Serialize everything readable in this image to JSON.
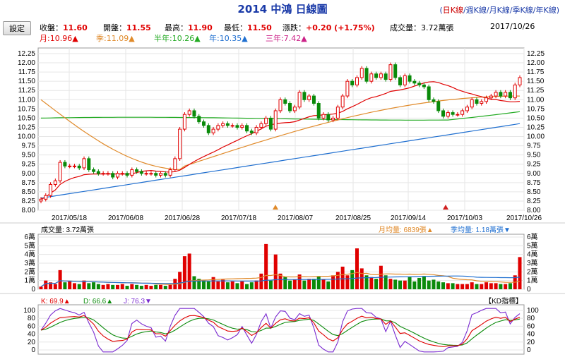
{
  "header": {
    "title": "2014 中鴻 日線圖",
    "periods": [
      {
        "label": "日K線",
        "active": true
      },
      {
        "label": "週K線",
        "active": false
      },
      {
        "label": "月K線",
        "active": false
      },
      {
        "label": "季K線",
        "active": false
      },
      {
        "label": "年K線",
        "active": false
      }
    ],
    "settings_label": "設定"
  },
  "quote": {
    "close_label": "收盤：",
    "close": "11.60",
    "open_label": "開盤：",
    "open": "11.55",
    "high_label": "最高：",
    "high": "11.90",
    "low_label": "最低：",
    "low": "11.50",
    "change_label": "漲跌：",
    "change": "+0.20 (+1.75%)",
    "volume_label": "成交量：",
    "volume": "3.72萬張",
    "date": "2017/10/26"
  },
  "ma_legend": [
    {
      "label": "月:10.96",
      "arrow": "▲",
      "color": "#e00000"
    },
    {
      "label": "季:11.09",
      "arrow": "▲",
      "color": "#e08a2a"
    },
    {
      "label": "半年:10.26",
      "arrow": "▲",
      "color": "#22aa22"
    },
    {
      "label": "年:10.35",
      "arrow": "▲",
      "color": "#1f6fd0"
    },
    {
      "label": "三年:7.42",
      "arrow": "▲",
      "color": "#cc2288"
    }
  ],
  "volume_panel": {
    "label": "成交量: 3.72萬張",
    "month_avg": "月均量: 6839張",
    "month_avg_arrow": "▲",
    "season_avg": "季均量: 1.18萬張",
    "season_avg_arrow": "▼"
  },
  "kd_panel": {
    "k": "K: 69.9",
    "k_arrow": "▲",
    "d": "D: 66.6",
    "d_arrow": "▲",
    "j": "J: 76.3",
    "j_arrow": "▼",
    "badge": "【KD指標】"
  },
  "colors": {
    "up": "#e00000",
    "down": "#0a8a0a",
    "ma_month": "#e00000",
    "ma_season": "#e08a2a",
    "ma_half": "#22aa22",
    "ma_year": "#1f6fd0",
    "k": "#e00000",
    "d": "#0a8a0a",
    "j": "#7a2ad0",
    "title": "#1a3aa8"
  },
  "chart_data": [
    {
      "type": "candlestick",
      "x_ticks": [
        "2017/05/18",
        "2017/06/08",
        "2017/06/28",
        "2017/07/18",
        "2017/08/07",
        "2017/08/25",
        "2017/09/14",
        "2017/10/03",
        "2017/10/26"
      ],
      "y_ticks": [
        "8.00",
        "8.25",
        "8.50",
        "8.75",
        "9.00",
        "9.25",
        "9.50",
        "9.75",
        "10.00",
        "10.25",
        "10.50",
        "10.75",
        "11.00",
        "11.25",
        "11.50",
        "11.75",
        "12.00",
        "12.25"
      ],
      "ylim": [
        8.0,
        12.25
      ],
      "close": [
        8.3,
        8.4,
        8.7,
        8.8,
        9.3,
        9.2,
        9.2,
        9.2,
        9.15,
        9.4,
        9.1,
        9.05,
        9.0,
        9.0,
        9.0,
        8.9,
        9.0,
        9.0,
        8.95,
        9.1,
        9.05,
        9.0,
        9.0,
        9.0,
        8.95,
        9.0,
        8.95,
        9.1,
        9.4,
        10.2,
        10.6,
        10.7,
        10.55,
        10.4,
        10.3,
        10.1,
        10.2,
        10.3,
        10.35,
        10.3,
        10.3,
        10.25,
        10.3,
        10.15,
        10.1,
        10.25,
        10.35,
        10.5,
        10.2,
        10.7,
        11.0,
        10.9,
        10.7,
        10.8,
        11.2,
        11.0,
        11.1,
        10.9,
        10.5,
        10.6,
        10.45,
        10.5,
        10.8,
        11.1,
        11.5,
        11.4,
        11.6,
        11.85,
        11.5,
        11.7,
        11.6,
        11.7,
        11.55,
        11.95,
        11.6,
        11.4,
        11.65,
        11.5,
        11.45,
        11.4,
        11.35,
        11.0,
        10.95,
        10.7,
        10.55,
        10.65,
        10.6,
        10.6,
        10.7,
        10.8,
        11.0,
        10.9,
        10.95,
        11.05,
        11.1,
        11.2,
        11.1,
        11.2,
        11.05,
        11.4,
        11.6
      ],
      "volume_ticks": [
        "0",
        "1萬",
        "2萬",
        "3萬",
        "4萬",
        "5萬",
        "6萬"
      ],
      "volume_wan": [
        0.3,
        1.0,
        0.8,
        0.6,
        2.2,
        0.8,
        0.9,
        0.7,
        0.6,
        1.0,
        0.7,
        0.8,
        0.6,
        0.5,
        0.6,
        0.5,
        0.5,
        0.6,
        0.4,
        0.6,
        0.5,
        0.4,
        0.5,
        0.4,
        0.5,
        0.5,
        0.4,
        0.5,
        1.2,
        2.0,
        3.8,
        4.1,
        1.5,
        1.2,
        1.0,
        0.9,
        1.4,
        0.9,
        1.1,
        0.8,
        0.9,
        0.7,
        0.9,
        0.6,
        0.8,
        1.0,
        1.8,
        5.2,
        1.0,
        4.0,
        1.8,
        1.4,
        1.0,
        1.1,
        1.7,
        1.0,
        1.2,
        1.2,
        1.5,
        1.1,
        0.9,
        1.6,
        2.0,
        2.6,
        1.6,
        2.2,
        4.7,
        2.4,
        1.6,
        1.4,
        1.2,
        2.7,
        1.6,
        1.2,
        1.1,
        1.0,
        1.0,
        1.4,
        0.9,
        1.3,
        1.5,
        1.0,
        1.1,
        0.9,
        0.8,
        0.7,
        0.7,
        0.6,
        0.6,
        0.6,
        0.8,
        0.6,
        0.6,
        0.8,
        0.7,
        0.7,
        0.6,
        0.6,
        0.7,
        1.6,
        3.7
      ],
      "kd_ticks": [
        "0",
        "20",
        "40",
        "60",
        "80",
        "100"
      ]
    }
  ]
}
